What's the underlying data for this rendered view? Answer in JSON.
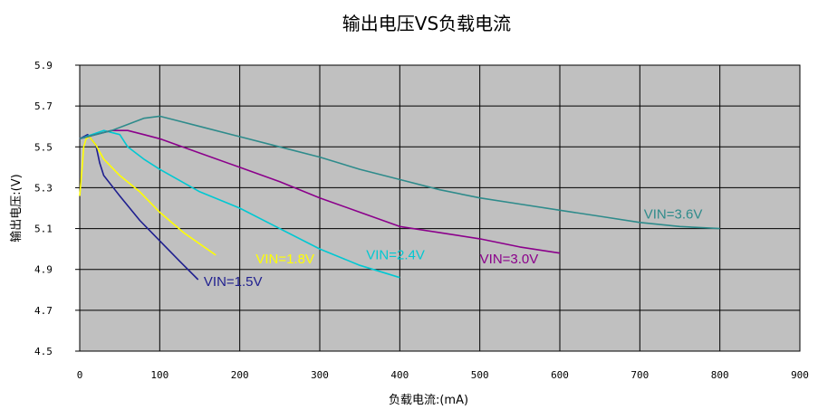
{
  "chart_data": {
    "type": "line",
    "title": "输出电压VS负载电流",
    "xlabel": "负载电流:(mA)",
    "ylabel": "输出电压:(V)",
    "xlim": [
      0,
      900
    ],
    "ylim": [
      4.5,
      5.9
    ],
    "x_ticks": [
      "0",
      "100",
      "200",
      "300",
      "400",
      "500",
      "600",
      "700",
      "800",
      "900"
    ],
    "y_ticks": [
      "5.9",
      "5.7",
      "5.5",
      "5.3",
      "5.1",
      "4.9",
      "4.7",
      "4.5"
    ],
    "grid": true,
    "plot_background": "#c0c0c0",
    "legend": "none",
    "series": [
      {
        "name": "VIN=1.5V",
        "color": "#1f1f8f",
        "x": [
          0,
          10,
          20,
          25,
          30,
          50,
          75,
          100,
          125,
          148
        ],
        "y": [
          5.54,
          5.56,
          5.51,
          5.42,
          5.36,
          5.26,
          5.14,
          5.04,
          4.94,
          4.85
        ]
      },
      {
        "name": "VIN=1.8V",
        "color": "#ffff00",
        "x": [
          0,
          3,
          5,
          8,
          12,
          20,
          30,
          50,
          75,
          100,
          130,
          170
        ],
        "y": [
          5.26,
          5.4,
          5.5,
          5.54,
          5.55,
          5.51,
          5.44,
          5.36,
          5.28,
          5.18,
          5.08,
          4.97
        ]
      },
      {
        "name": "VIN=2.4V",
        "color": "#00c8d2",
        "x": [
          0,
          15,
          30,
          50,
          60,
          80,
          100,
          150,
          200,
          250,
          300,
          350,
          400
        ],
        "y": [
          5.54,
          5.56,
          5.58,
          5.56,
          5.5,
          5.44,
          5.39,
          5.28,
          5.2,
          5.1,
          5.0,
          4.92,
          4.86
        ]
      },
      {
        "name": "VIN=3.0V",
        "color": "#8b008b",
        "x": [
          0,
          20,
          40,
          60,
          80,
          100,
          150,
          200,
          250,
          300,
          350,
          400,
          450,
          500,
          550,
          600
        ],
        "y": [
          5.54,
          5.56,
          5.58,
          5.58,
          5.56,
          5.54,
          5.47,
          5.4,
          5.33,
          5.25,
          5.18,
          5.11,
          5.08,
          5.05,
          5.01,
          4.98
        ]
      },
      {
        "name": "VIN=3.6V",
        "color": "#2e8b8b",
        "x": [
          0,
          20,
          40,
          60,
          80,
          100,
          120,
          150,
          200,
          250,
          300,
          350,
          400,
          450,
          500,
          550,
          600,
          650,
          700,
          750,
          800
        ],
        "y": [
          5.54,
          5.56,
          5.58,
          5.61,
          5.64,
          5.65,
          5.63,
          5.6,
          5.55,
          5.5,
          5.45,
          5.39,
          5.34,
          5.29,
          5.25,
          5.22,
          5.19,
          5.16,
          5.13,
          5.11,
          5.1
        ]
      }
    ],
    "annotations": [
      {
        "text": "VIN=1.5V",
        "color": "#1f1f8f",
        "x": 155,
        "y": 4.82
      },
      {
        "text": "VIN=1.8V",
        "color": "#ffff00",
        "x": 220,
        "y": 4.93
      },
      {
        "text": "VIN=2.4V",
        "color": "#00c8d2",
        "x": 358,
        "y": 4.95
      },
      {
        "text": "VIN=3.0V",
        "color": "#8b008b",
        "x": 500,
        "y": 4.93
      },
      {
        "text": "VIN=3.6V",
        "color": "#2e8b8b",
        "x": 705,
        "y": 5.15
      }
    ]
  }
}
